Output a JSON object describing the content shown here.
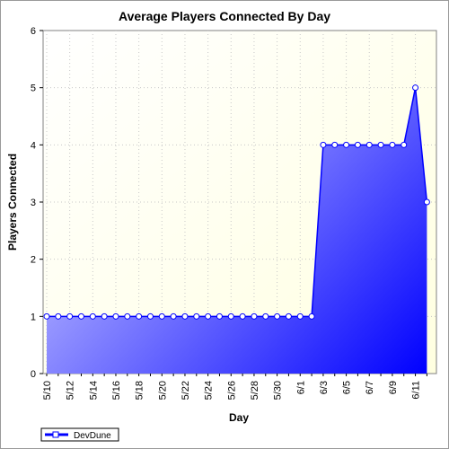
{
  "chart_data": {
    "type": "area",
    "title": "Average Players Connected By Day",
    "xlabel": "Day",
    "ylabel": "Players Connected",
    "ylim": [
      0,
      6
    ],
    "yticks": [
      "0",
      "1",
      "2",
      "3",
      "4",
      "5",
      "6"
    ],
    "x": [
      "5/10",
      "5/11",
      "5/12",
      "5/13",
      "5/14",
      "5/15",
      "5/16",
      "5/17",
      "5/18",
      "5/19",
      "5/20",
      "5/21",
      "5/22",
      "5/23",
      "5/24",
      "5/25",
      "5/26",
      "5/27",
      "5/28",
      "5/29",
      "5/30",
      "5/31",
      "6/1",
      "6/2",
      "6/3",
      "6/4",
      "6/5",
      "6/6",
      "6/7",
      "6/8",
      "6/9",
      "6/10",
      "6/11",
      "6/12"
    ],
    "xtick_labels": [
      "5/10",
      "5/12",
      "5/14",
      "5/16",
      "5/18",
      "5/20",
      "5/22",
      "5/24",
      "5/26",
      "5/28",
      "5/30",
      "6/1",
      "6/3",
      "6/5",
      "6/7",
      "6/9",
      "6/11"
    ],
    "series": [
      {
        "name": "DevDune",
        "color": "#0000ff",
        "values": [
          1,
          1,
          1,
          1,
          1,
          1,
          1,
          1,
          1,
          1,
          1,
          1,
          1,
          1,
          1,
          1,
          1,
          1,
          1,
          1,
          1,
          1,
          1,
          1,
          4,
          4,
          4,
          4,
          4,
          4,
          4,
          4,
          5,
          3
        ]
      }
    ],
    "grid": true,
    "legend_position": "bottom-left",
    "plot_background": "#ffffe8",
    "fill_gradient": [
      "#c8c8ff",
      "#0000ff"
    ]
  }
}
